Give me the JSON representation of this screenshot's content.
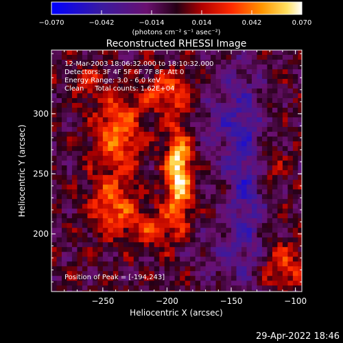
{
  "chart_data": {
    "type": "heatmap",
    "title": "Reconstructed RHESSI Image",
    "annotations": [
      "12-Mar-2003 18:06:32.000 to 18:10:32.000",
      "Detectors: 3F 4F 5F 6F 7F 8F, Att 0",
      "Energy Range: 3.0 - 6.0 keV",
      "Clean     Total counts: 1.62E+04"
    ],
    "peak_label": "Position of Peak = [-194,243]",
    "peak": [
      -194,
      243
    ],
    "xlabel": "Heliocentric X (arcsec)",
    "ylabel": "Heliocentric Y (arcsec)",
    "xlim": [
      -290,
      -95
    ],
    "ylim": [
      152,
      353
    ],
    "x_ticks": [
      {
        "value": -250,
        "label": "−250"
      },
      {
        "value": -200,
        "label": "−200"
      },
      {
        "value": -150,
        "label": "−150"
      },
      {
        "value": -100,
        "label": "−100"
      }
    ],
    "y_ticks": [
      {
        "value": 200,
        "label": "200"
      },
      {
        "value": 250,
        "label": "250"
      },
      {
        "value": 300,
        "label": "300"
      }
    ],
    "colorbar": {
      "range": [
        -0.07,
        0.07
      ],
      "unit_label": "(photons cm⁻² s⁻¹ asec⁻²)",
      "ticks": [
        {
          "value": -0.07,
          "label": "−0.070"
        },
        {
          "value": -0.042,
          "label": "−0.042"
        },
        {
          "value": -0.014,
          "label": "−0.014"
        },
        {
          "value": 0.014,
          "label": "0.014"
        },
        {
          "value": 0.042,
          "label": "0.042"
        },
        {
          "value": 0.07,
          "label": "0.070"
        }
      ]
    },
    "sources": [
      {
        "x": -193,
        "y": 252,
        "amplitude": 0.075,
        "sx": 7,
        "sy": 26
      },
      {
        "x": -240,
        "y": 285,
        "amplitude": 0.045,
        "sx": 13,
        "sy": 22
      },
      {
        "x": -245,
        "y": 225,
        "amplitude": 0.04,
        "sx": 12,
        "sy": 16
      },
      {
        "x": -212,
        "y": 208,
        "amplitude": 0.028,
        "sx": 15,
        "sy": 12
      },
      {
        "x": -200,
        "y": 320,
        "amplitude": 0.035,
        "sx": 15,
        "sy": 12
      },
      {
        "x": -262,
        "y": 328,
        "amplitude": 0.02,
        "sx": 10,
        "sy": 10
      },
      {
        "x": -110,
        "y": 175,
        "amplitude": 0.03,
        "sx": 12,
        "sy": 14
      },
      {
        "x": -125,
        "y": 260,
        "amplitude": 0.02,
        "sx": 9,
        "sy": 12
      },
      {
        "x": -140,
        "y": 245,
        "amplitude": -0.035,
        "sx": 10,
        "sy": 60
      },
      {
        "x": -160,
        "y": 300,
        "amplitude": -0.02,
        "sx": 15,
        "sy": 30
      },
      {
        "x": -165,
        "y": 185,
        "amplitude": -0.015,
        "sx": 15,
        "sy": 15
      }
    ]
  },
  "footer": {
    "timestamp": "29-Apr-2022 18:46"
  }
}
